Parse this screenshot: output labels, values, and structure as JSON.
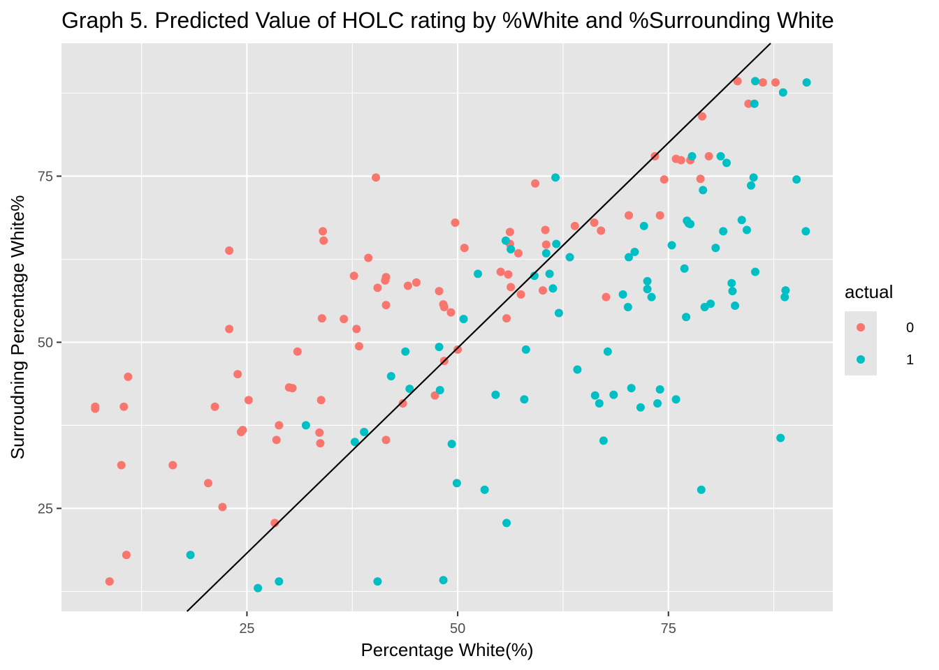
{
  "chart_data": {
    "type": "scatter",
    "title": "Graph 5. Predicted Value of HOLC rating by %White and %Surrounding White",
    "xlabel": "Percentage White(%)",
    "ylabel": "Surroudning Percentage White%",
    "xlim": [
      3.0,
      94.5
    ],
    "ylim": [
      9.5,
      95.0
    ],
    "x_ticks": [
      25,
      50,
      75
    ],
    "y_ticks": [
      25,
      50,
      75
    ],
    "x_minor": [
      12.5,
      37.5,
      62.5,
      87.5
    ],
    "y_minor": [
      12.5,
      37.5,
      62.5,
      87.5
    ],
    "grid": true,
    "legend": {
      "title": "actual",
      "position": "right",
      "entries": [
        "0",
        "1"
      ]
    },
    "colors": {
      "0": "#F8766D",
      "1": "#00BFC4",
      "panel": "#E5E5E5",
      "grid": "#FFFFFF",
      "line": "#000000"
    },
    "reference_line": {
      "slope": 1.235,
      "intercept": -12.6
    },
    "series": [
      {
        "name": "0",
        "points": [
          [
            7.0,
            40.3
          ],
          [
            7.0,
            40.0
          ],
          [
            8.7,
            14.0
          ],
          [
            10.1,
            31.5
          ],
          [
            10.4,
            40.3
          ],
          [
            10.7,
            18.0
          ],
          [
            10.9,
            44.8
          ],
          [
            16.2,
            31.5
          ],
          [
            20.4,
            28.8
          ],
          [
            21.2,
            40.3
          ],
          [
            22.1,
            25.2
          ],
          [
            22.9,
            63.8
          ],
          [
            22.9,
            52.0
          ],
          [
            23.9,
            45.2
          ],
          [
            24.3,
            36.5
          ],
          [
            24.5,
            36.8
          ],
          [
            25.2,
            41.3
          ],
          [
            28.3,
            22.8
          ],
          [
            28.5,
            35.3
          ],
          [
            28.8,
            37.5
          ],
          [
            30.0,
            43.2
          ],
          [
            30.4,
            43.1
          ],
          [
            31.0,
            48.6
          ],
          [
            33.6,
            36.4
          ],
          [
            33.7,
            34.8
          ],
          [
            33.8,
            41.3
          ],
          [
            33.9,
            53.6
          ],
          [
            34.0,
            66.7
          ],
          [
            34.1,
            65.3
          ],
          [
            36.5,
            53.5
          ],
          [
            37.7,
            60.0
          ],
          [
            38.0,
            52.0
          ],
          [
            38.3,
            49.4
          ],
          [
            39.4,
            62.7
          ],
          [
            40.3,
            74.8
          ],
          [
            40.5,
            58.2
          ],
          [
            41.4,
            59.3
          ],
          [
            41.5,
            59.8
          ],
          [
            41.5,
            35.3
          ],
          [
            41.5,
            55.6
          ],
          [
            43.5,
            40.8
          ],
          [
            44.1,
            58.5
          ],
          [
            45.1,
            59.0
          ],
          [
            47.3,
            42.0
          ],
          [
            47.8,
            57.7
          ],
          [
            48.3,
            55.7
          ],
          [
            48.4,
            55.3
          ],
          [
            48.4,
            47.2
          ],
          [
            49.2,
            54.5
          ],
          [
            49.7,
            68.0
          ],
          [
            50.0,
            48.9
          ],
          [
            50.8,
            64.2
          ],
          [
            55.1,
            60.6
          ],
          [
            55.8,
            53.6
          ],
          [
            56.0,
            60.2
          ],
          [
            56.2,
            66.6
          ],
          [
            56.2,
            64.8
          ],
          [
            56.3,
            58.3
          ],
          [
            57.2,
            63.4
          ],
          [
            57.5,
            57.2
          ],
          [
            59.2,
            73.9
          ],
          [
            60.1,
            57.8
          ],
          [
            60.4,
            66.9
          ],
          [
            60.5,
            64.7
          ],
          [
            63.9,
            67.5
          ],
          [
            66.2,
            68.0
          ],
          [
            67.0,
            66.8
          ],
          [
            67.6,
            56.8
          ],
          [
            70.3,
            69.1
          ],
          [
            73.4,
            78.0
          ],
          [
            74.0,
            69.1
          ],
          [
            74.5,
            74.5
          ],
          [
            75.9,
            77.6
          ],
          [
            76.5,
            77.4
          ],
          [
            77.6,
            77.4
          ],
          [
            78.8,
            74.6
          ],
          [
            79.0,
            84.0
          ],
          [
            79.8,
            78.0
          ],
          [
            83.2,
            89.3
          ],
          [
            84.5,
            85.9
          ],
          [
            86.2,
            89.1
          ],
          [
            87.7,
            89.1
          ]
        ]
      },
      {
        "name": "1",
        "points": [
          [
            18.3,
            18.0
          ],
          [
            26.3,
            13.0
          ],
          [
            28.8,
            14.0
          ],
          [
            32.0,
            37.5
          ],
          [
            37.8,
            35.0
          ],
          [
            38.9,
            36.5
          ],
          [
            40.5,
            14.0
          ],
          [
            42.1,
            44.9
          ],
          [
            43.8,
            48.6
          ],
          [
            44.3,
            43.0
          ],
          [
            47.8,
            49.3
          ],
          [
            47.9,
            42.8
          ],
          [
            48.3,
            14.2
          ],
          [
            49.3,
            34.7
          ],
          [
            49.9,
            28.8
          ],
          [
            50.7,
            53.5
          ],
          [
            52.4,
            60.3
          ],
          [
            53.2,
            27.8
          ],
          [
            54.5,
            42.1
          ],
          [
            55.7,
            65.3
          ],
          [
            55.8,
            22.8
          ],
          [
            56.3,
            64.0
          ],
          [
            57.9,
            41.4
          ],
          [
            58.1,
            48.9
          ],
          [
            59.1,
            60.0
          ],
          [
            60.5,
            63.4
          ],
          [
            60.9,
            60.3
          ],
          [
            61.3,
            58.1
          ],
          [
            61.6,
            74.8
          ],
          [
            61.7,
            64.8
          ],
          [
            62.0,
            54.4
          ],
          [
            63.3,
            62.8
          ],
          [
            64.2,
            45.9
          ],
          [
            66.3,
            42.0
          ],
          [
            66.8,
            40.8
          ],
          [
            67.3,
            35.2
          ],
          [
            67.8,
            48.6
          ],
          [
            68.5,
            42.1
          ],
          [
            69.6,
            57.2
          ],
          [
            70.2,
            55.3
          ],
          [
            70.3,
            62.8
          ],
          [
            70.6,
            43.1
          ],
          [
            71.0,
            63.6
          ],
          [
            71.7,
            40.2
          ],
          [
            72.1,
            67.5
          ],
          [
            72.5,
            58.0
          ],
          [
            72.5,
            59.2
          ],
          [
            73.0,
            56.8
          ],
          [
            73.7,
            40.8
          ],
          [
            74.0,
            42.9
          ],
          [
            75.4,
            64.6
          ],
          [
            75.9,
            41.4
          ],
          [
            76.9,
            61.1
          ],
          [
            77.1,
            53.8
          ],
          [
            77.2,
            68.3
          ],
          [
            77.4,
            67.9
          ],
          [
            77.6,
            67.8
          ],
          [
            77.8,
            78.0
          ],
          [
            78.9,
            27.8
          ],
          [
            79.1,
            72.9
          ],
          [
            79.3,
            55.3
          ],
          [
            80.0,
            55.8
          ],
          [
            80.6,
            64.2
          ],
          [
            81.2,
            78.0
          ],
          [
            81.5,
            66.7
          ],
          [
            81.9,
            77.0
          ],
          [
            82.5,
            58.9
          ],
          [
            82.6,
            57.7
          ],
          [
            82.9,
            55.5
          ],
          [
            83.7,
            68.4
          ],
          [
            84.3,
            66.9
          ],
          [
            84.8,
            73.6
          ],
          [
            85.1,
            74.8
          ],
          [
            85.2,
            85.9
          ],
          [
            85.3,
            60.6
          ],
          [
            85.3,
            89.3
          ],
          [
            88.3,
            35.6
          ],
          [
            88.6,
            87.6
          ],
          [
            88.8,
            56.8
          ],
          [
            88.9,
            57.8
          ],
          [
            90.2,
            74.5
          ],
          [
            91.3,
            66.7
          ],
          [
            91.4,
            89.1
          ]
        ]
      }
    ]
  }
}
